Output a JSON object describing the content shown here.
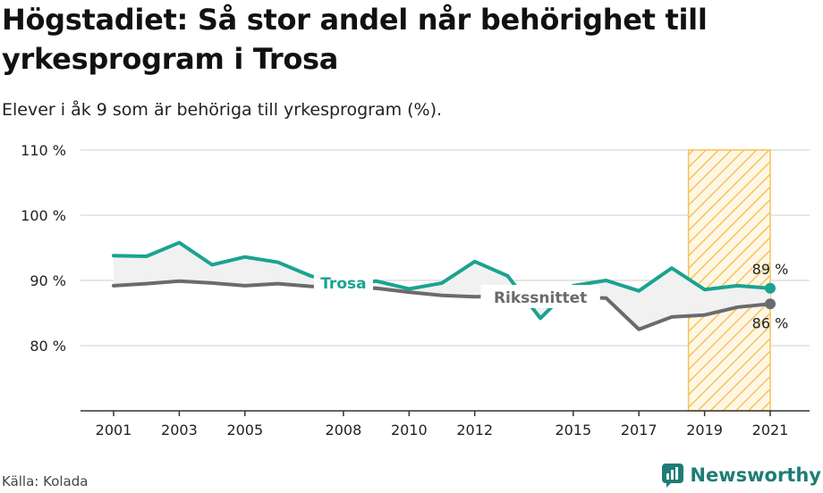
{
  "title": "Högstadiet: Så stor andel når behörighet till yrkesprogram i Trosa",
  "subtitle": "Elever i åk 9 som är behöriga till yrkesprogram (%).",
  "source": "Källa: Kolada",
  "brand": "Newsworthy",
  "colors": {
    "trosa": "#1aa391",
    "riket": "#6b6b6e",
    "highlight": "#f6c25b",
    "grid": "#dddddd",
    "area": "#f1f1f1"
  },
  "chart_data": {
    "type": "line",
    "x": [
      2001,
      2002,
      2003,
      2004,
      2005,
      2006,
      2007,
      2008,
      2009,
      2010,
      2011,
      2012,
      2013,
      2014,
      2015,
      2016,
      2017,
      2018,
      2019,
      2020,
      2021
    ],
    "xticks": [
      "2001",
      "2003",
      "2005",
      "2008",
      "2010",
      "2012",
      "2015",
      "2017",
      "2019",
      "2021"
    ],
    "xtick_years": [
      2001,
      2003,
      2005,
      2008,
      2010,
      2012,
      2015,
      2017,
      2019,
      2021
    ],
    "ylim": [
      70,
      110
    ],
    "yticks": [
      80,
      90,
      100,
      110
    ],
    "ytick_labels": [
      "80 %",
      "90 %",
      "100 %",
      "110 %"
    ],
    "highlight_range": [
      2019,
      2021
    ],
    "series": [
      {
        "name": "Trosa",
        "key": "trosa",
        "values": [
          93.8,
          93.7,
          95.8,
          92.4,
          93.6,
          92.8,
          90.7,
          89.5,
          89.9,
          88.7,
          89.6,
          92.9,
          90.7,
          84.2,
          89.2,
          90.0,
          88.4,
          91.9,
          88.6,
          89.2,
          88.8
        ],
        "end_label": "89 %"
      },
      {
        "name": "Rikssnittet",
        "key": "riket",
        "values": [
          89.2,
          89.5,
          89.9,
          89.6,
          89.2,
          89.5,
          89.1,
          88.9,
          88.8,
          88.2,
          87.7,
          87.5,
          87.6,
          87.4,
          87.4,
          87.3,
          82.5,
          84.4,
          84.7,
          85.9,
          86.4
        ],
        "end_label": "86 %"
      }
    ]
  }
}
